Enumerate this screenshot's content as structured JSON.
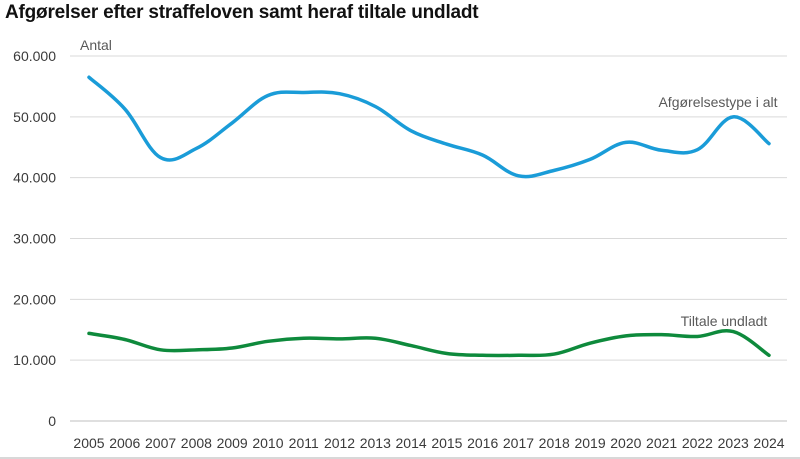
{
  "chart_data": {
    "type": "line",
    "title": "Afgørelser efter straffeloven samt heraf tiltale undladt",
    "ylabel": "Antal",
    "xlabel": "",
    "ylim": [
      0,
      60000
    ],
    "yticks": [
      0,
      10000,
      20000,
      30000,
      40000,
      50000,
      60000
    ],
    "ytick_labels": [
      "0",
      "10.000",
      "20.000",
      "30.000",
      "40.000",
      "50.000",
      "60.000"
    ],
    "x": [
      "2005",
      "2006",
      "2007",
      "2008",
      "2009",
      "2010",
      "2011",
      "2012",
      "2013",
      "2014",
      "2015",
      "2016",
      "2017",
      "2018",
      "2019",
      "2020",
      "2021",
      "2022",
      "2023",
      "2024"
    ],
    "grid": "horizontal",
    "legend": "inline labels",
    "series": [
      {
        "name": "Afgørelsestype i alt",
        "color": "#1a9cd8",
        "values": [
          56500,
          51300,
          43300,
          44800,
          49000,
          53500,
          54000,
          53800,
          51700,
          47700,
          45500,
          43700,
          40300,
          41200,
          43000,
          45800,
          44500,
          44600,
          50000,
          45600
        ]
      },
      {
        "name": "Tiltale undladt",
        "color": "#0e8a3c",
        "values": [
          14400,
          13400,
          11700,
          11700,
          12000,
          13100,
          13600,
          13500,
          13600,
          12400,
          11100,
          10800,
          10800,
          11000,
          12800,
          14000,
          14200,
          13900,
          14700,
          10800
        ]
      }
    ]
  }
}
